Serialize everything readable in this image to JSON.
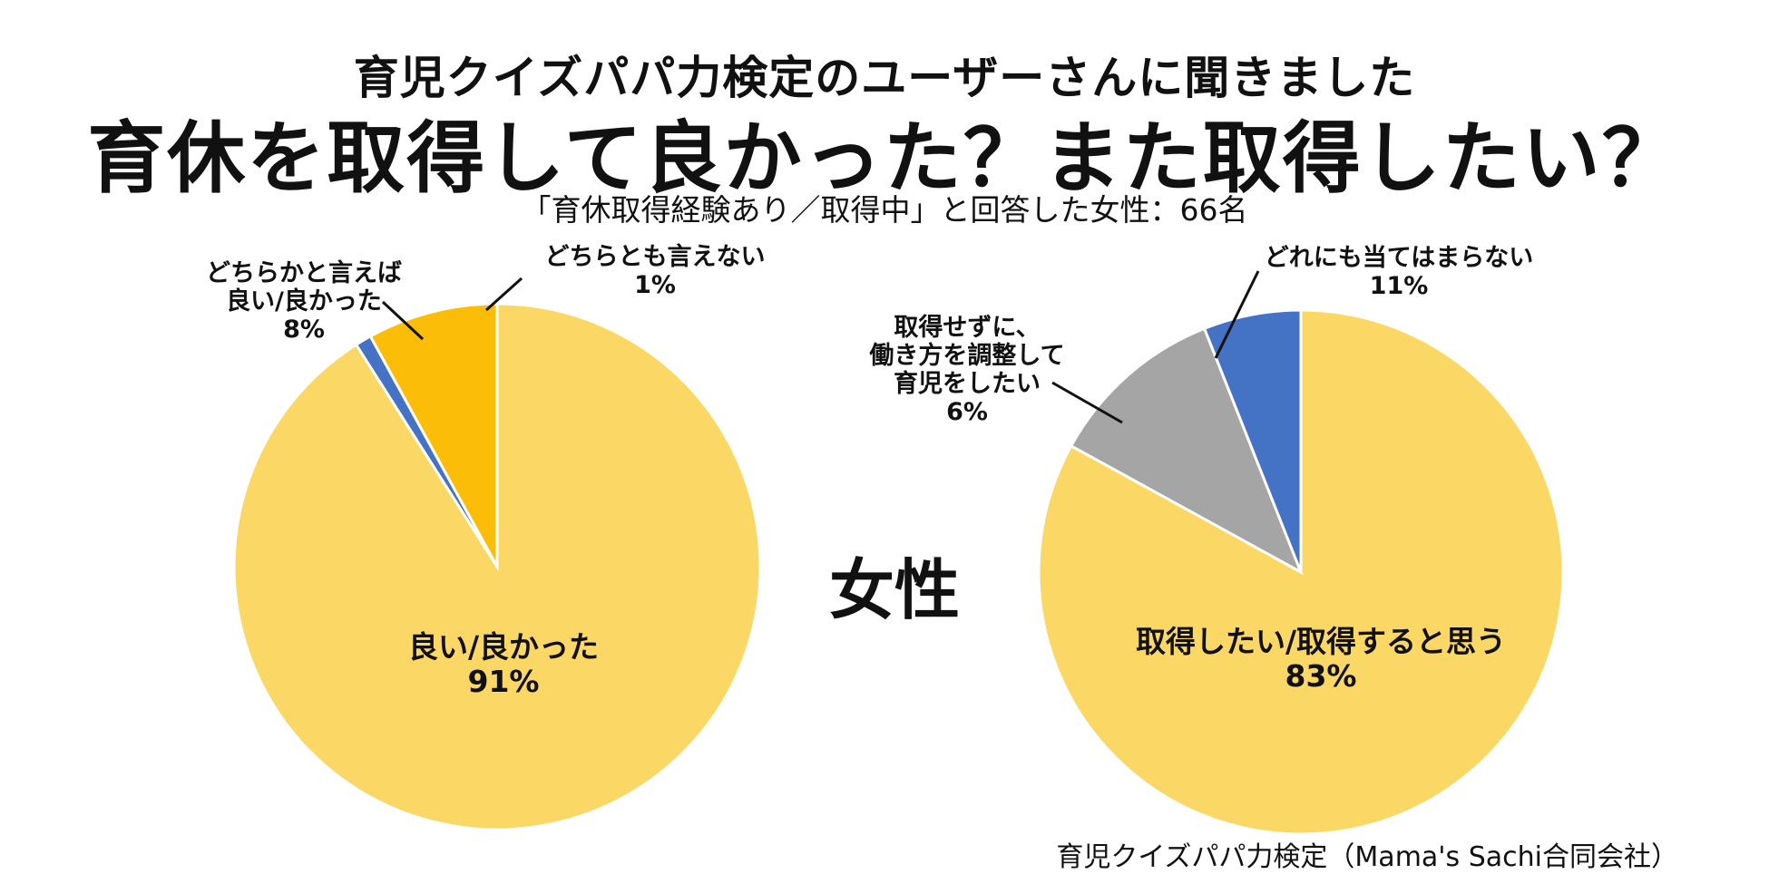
{
  "header": {
    "subtitle": "育児クイズパパ力検定のユーザーさんに聞きました",
    "title": "育休を取得して良かった？また取得したい？",
    "respondents": "「育休取得経験あり／取得中」と回答した女性：66名"
  },
  "center_label": "女性",
  "footer": {
    "source": "育児クイズパパ力検定（Mama's Sachi合同会社）"
  },
  "chart_data": [
    {
      "type": "pie",
      "name": "good-to-take-leave",
      "start": "12 o'clock",
      "direction": "counter-clockwise",
      "slices": [
        {
          "label": "良い/良かった",
          "value": 91,
          "pct_text": "91%",
          "color": "#FBD766",
          "label_lines": [
            "良い/良かった"
          ],
          "label_position": "inside"
        },
        {
          "label": "どちらかと言えば良い/良かった",
          "value": 8,
          "pct_text": "8%",
          "color": "#FBBD07",
          "label_lines": [
            "どちらかと言えば",
            "良い/良かった"
          ],
          "label_position": "outside-left"
        },
        {
          "label": "どちらとも言えない",
          "value": 1,
          "pct_text": "1%",
          "color": "#4472C4",
          "label_lines": [
            "どちらとも言えない"
          ],
          "label_position": "outside-top"
        }
      ]
    },
    {
      "type": "pie",
      "name": "want-to-take-again",
      "start": "12 o'clock",
      "direction": "counter-clockwise",
      "slices": [
        {
          "label": "取得したい/取得すると思う",
          "value": 83,
          "pct_text": "83%",
          "color": "#FBD766",
          "label_lines": [
            "取得したい/取得すると思う"
          ],
          "label_position": "inside"
        },
        {
          "label": "取得せずに、働き方を調整して育児をしたい",
          "value": 6,
          "pct_text": "6%",
          "color": "#4472C4",
          "label_lines": [
            "取得せずに、",
            "働き方を調整して",
            "育児をしたい"
          ],
          "label_position": "outside-left"
        },
        {
          "label": "どれにも当てはまらない",
          "value": 11,
          "pct_text": "11%",
          "color": "#A5A5A5",
          "label_lines": [
            "どれにも当てはまらない"
          ],
          "label_position": "outside-top"
        }
      ]
    }
  ]
}
